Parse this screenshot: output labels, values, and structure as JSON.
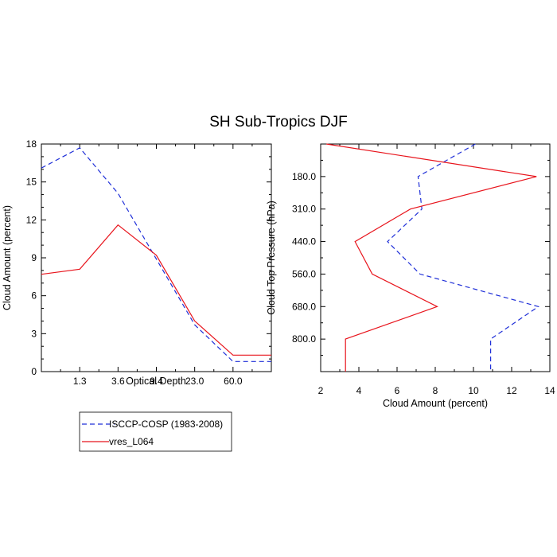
{
  "title": "SH Sub-Tropics DJF",
  "colors": {
    "isccp": "#1f2fd8",
    "model": "#e8141c",
    "axis": "#000000"
  },
  "legend": {
    "entries": [
      {
        "name": "ISCCP-COSP (1983-2008)",
        "color": "#1f2fd8",
        "dash": true
      },
      {
        "name": "vres_L064",
        "color": "#e8141c",
        "dash": false
      }
    ]
  },
  "chart_data": [
    {
      "type": "line",
      "panel": "left",
      "xlabel": "Optical Depth",
      "ylabel": "Cloud Amount (percent)",
      "x_tick_labels": [
        "1.3",
        "3.6",
        "9.4",
        "23.0",
        "60.0"
      ],
      "y_ticks": [
        0,
        3,
        6,
        9,
        12,
        15,
        18
      ],
      "ylim": [
        0,
        18
      ],
      "x_index_range": [
        0,
        6
      ],
      "series": [
        {
          "name": "ISCCP-COSP (1983-2008)",
          "x": [
            0,
            1,
            2,
            3,
            4,
            5,
            6
          ],
          "values": [
            16.1,
            17.7,
            14.1,
            8.9,
            3.7,
            0.8,
            0.8
          ]
        },
        {
          "name": "vres_L064",
          "x": [
            0,
            1,
            2,
            3,
            4,
            5,
            6
          ],
          "values": [
            7.7,
            8.1,
            11.6,
            9.2,
            4.0,
            1.3,
            1.3
          ]
        }
      ]
    },
    {
      "type": "line",
      "panel": "right",
      "xlabel": "Cloud Amount (percent)",
      "ylabel": "Cloud Top Pressure (hPa)",
      "x_ticks": [
        2,
        4,
        6,
        8,
        10,
        12,
        14
      ],
      "xlim": [
        2,
        14
      ],
      "y_tick_labels": [
        "180.0",
        "310.0",
        "440.0",
        "560.0",
        "680.0",
        "800.0"
      ],
      "y_index_range": [
        0,
        7
      ],
      "series": [
        {
          "name": "ISCCP-COSP (1983-2008)",
          "y": [
            0,
            1,
            2,
            3,
            4,
            5,
            6,
            7
          ],
          "values": [
            10.1,
            7.1,
            7.3,
            5.5,
            7.2,
            13.4,
            10.9,
            10.9
          ]
        },
        {
          "name": "vres_L064",
          "y": [
            0,
            1,
            2,
            3,
            4,
            5,
            6,
            7
          ],
          "values": [
            2.3,
            13.3,
            6.7,
            3.8,
            4.7,
            8.1,
            3.3,
            3.3
          ]
        }
      ]
    }
  ]
}
